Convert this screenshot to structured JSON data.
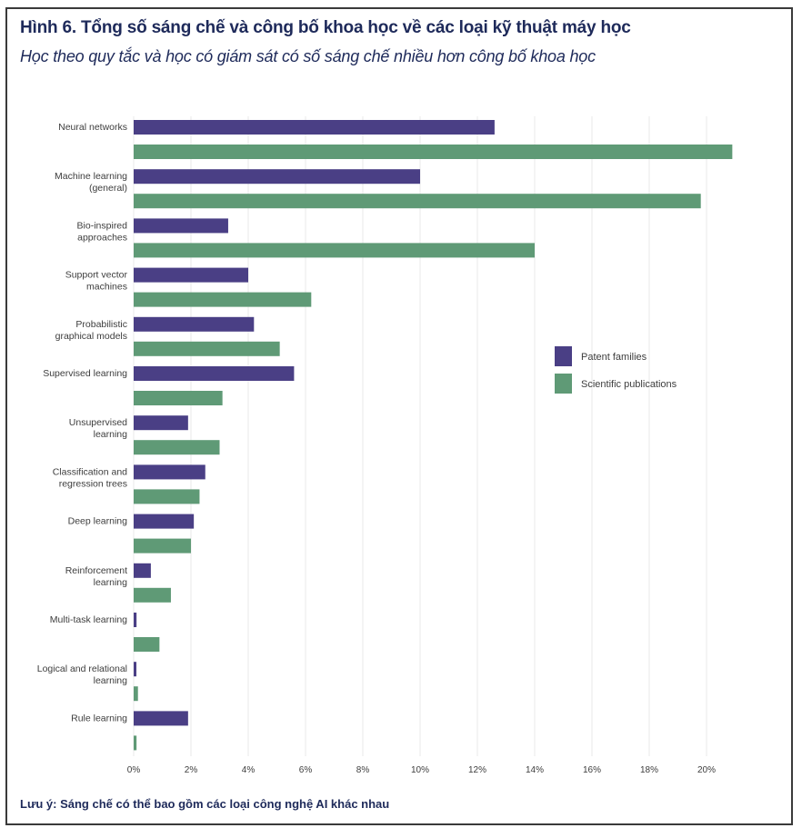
{
  "title": "Hình 6. Tổng số sáng chế và công bố khoa học về các loại kỹ thuật máy học",
  "subtitle": "Học theo quy tắc và học có giám sát có số sáng chế nhiều hơn công bố khoa học",
  "note": "Lưu ý: Sáng chế có thể bao gồm các loại công nghệ AI khác nhau",
  "colors": {
    "patent": "#4a3f85",
    "publication": "#5f9a76",
    "title": "#1e2a5a",
    "grid": "#d9d9d9"
  },
  "chart_data": {
    "type": "bar",
    "orientation": "horizontal",
    "categories": [
      [
        "Neural networks"
      ],
      [
        "Machine learning",
        "(general)"
      ],
      [
        "Bio-inspired",
        "approaches"
      ],
      [
        "Support vector",
        "machines"
      ],
      [
        "Probabilistic",
        "graphical models"
      ],
      [
        "Supervised learning"
      ],
      [
        "Unsupervised",
        "learning"
      ],
      [
        "Classification and",
        "regression trees"
      ],
      [
        "Deep learning"
      ],
      [
        "Reinforcement",
        "learning"
      ],
      [
        "Multi-task learning"
      ],
      [
        "Logical and relational",
        "learning"
      ],
      [
        "Rule learning"
      ]
    ],
    "series": [
      {
        "name": "Patent families",
        "values": [
          12.6,
          10.0,
          3.3,
          4.0,
          4.2,
          5.6,
          1.9,
          2.5,
          2.1,
          0.6,
          0.1,
          0.05,
          1.9
        ]
      },
      {
        "name": "Scientific publications",
        "values": [
          20.9,
          19.8,
          14.0,
          6.2,
          5.1,
          3.1,
          3.0,
          2.3,
          2.0,
          1.3,
          0.9,
          0.15,
          0.1
        ]
      }
    ],
    "xlim": [
      0,
      22
    ],
    "xticks": [
      0,
      2,
      4,
      6,
      8,
      10,
      12,
      14,
      16,
      18,
      20
    ],
    "xtick_labels": [
      "0%",
      "2%",
      "4%",
      "6%",
      "8%",
      "10%",
      "12%",
      "14%",
      "16%",
      "18%",
      "20%"
    ],
    "legend_position": "right"
  }
}
